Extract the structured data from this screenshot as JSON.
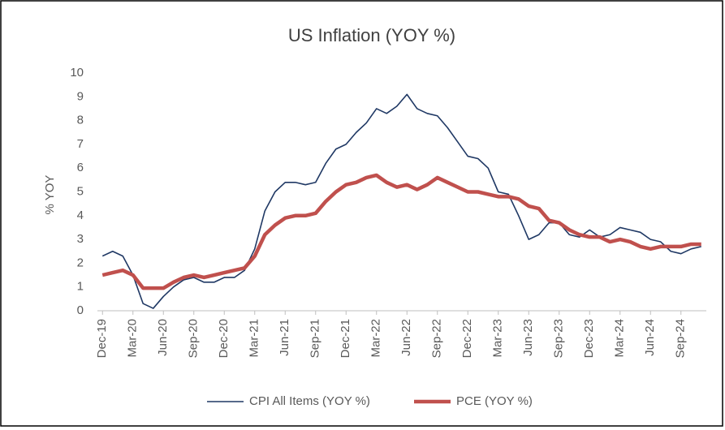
{
  "chart_data": {
    "type": "line",
    "title": "US Inflation (YOY %)",
    "y_label": "% YOY",
    "categories": [
      "Dec-19",
      null,
      null,
      "Mar-20",
      null,
      null,
      "Jun-20",
      null,
      null,
      "Sep-20",
      null,
      null,
      "Dec-20",
      null,
      null,
      "Mar-21",
      null,
      null,
      "Jun-21",
      null,
      null,
      "Sep-21",
      null,
      null,
      "Dec-21",
      null,
      null,
      "Mar-22",
      null,
      null,
      "Jun-22",
      null,
      null,
      "Sep-22",
      null,
      null,
      "Dec-22",
      null,
      null,
      "Mar-23",
      null,
      null,
      "Jun-23",
      null,
      null,
      "Sep-23",
      null,
      null,
      "Dec-23",
      null,
      null,
      "Mar-24",
      null,
      null,
      "Jun-24",
      null,
      null,
      "Sep-24",
      null,
      null
    ],
    "series": [
      {
        "name": "CPI All Items (YOY %)",
        "color": "#1f3864",
        "width": 1.6,
        "values": [
          2.3,
          2.5,
          2.3,
          1.5,
          0.3,
          0.1,
          0.6,
          1.0,
          1.3,
          1.4,
          1.2,
          1.2,
          1.4,
          1.4,
          1.7,
          2.6,
          4.2,
          5.0,
          5.4,
          5.4,
          5.3,
          5.4,
          6.2,
          6.8,
          7.0,
          7.5,
          7.9,
          8.5,
          8.3,
          8.6,
          9.1,
          8.5,
          8.3,
          8.2,
          7.7,
          7.1,
          6.5,
          6.4,
          6.0,
          5.0,
          4.9,
          4.0,
          3.0,
          3.2,
          3.7,
          3.7,
          3.2,
          3.1,
          3.4,
          3.1,
          3.2,
          3.5,
          3.4,
          3.3,
          3.0,
          2.9,
          2.5,
          2.4,
          2.6,
          2.7
        ]
      },
      {
        "name": "PCE (YOY %)",
        "color": "#c0504d",
        "width": 4.5,
        "values": [
          1.5,
          1.6,
          1.7,
          1.5,
          0.95,
          0.95,
          0.95,
          1.2,
          1.4,
          1.5,
          1.4,
          1.5,
          1.6,
          1.7,
          1.8,
          2.3,
          3.2,
          3.6,
          3.9,
          4.0,
          4.0,
          4.1,
          4.6,
          5.0,
          5.3,
          5.4,
          5.6,
          5.7,
          5.4,
          5.2,
          5.3,
          5.1,
          5.3,
          5.6,
          5.4,
          5.2,
          5.0,
          5.0,
          4.9,
          4.8,
          4.8,
          4.7,
          4.4,
          4.3,
          3.8,
          3.7,
          3.4,
          3.2,
          3.1,
          3.1,
          2.9,
          3.0,
          2.9,
          2.7,
          2.6,
          2.7,
          2.7,
          2.7,
          2.8,
          2.8
        ]
      }
    ],
    "ylim": [
      0,
      10
    ],
    "yticks": [
      0,
      1,
      2,
      3,
      4,
      5,
      6,
      7,
      8,
      9,
      10
    ],
    "grid": false,
    "legend": "bottom"
  }
}
